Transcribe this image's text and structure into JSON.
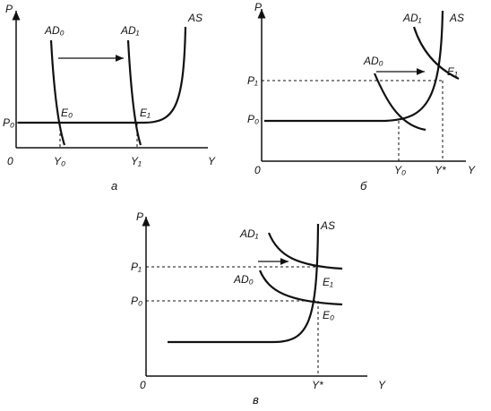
{
  "panels": [
    {
      "caption": "а",
      "labels": {
        "p_axis": "P",
        "y_axis": "Y",
        "origin": "0",
        "ad0": "AD₀",
        "ad1": "AD₁",
        "as": "AS",
        "p0": "P₀",
        "e0": "E₀",
        "e1": "E₁",
        "y0": "Y₀",
        "y1": "Y₁"
      }
    },
    {
      "caption": "б",
      "labels": {
        "p_axis": "P",
        "y_axis": "Y",
        "origin": "0",
        "ad0": "AD₀",
        "ad1": "AD₁",
        "as": "AS",
        "p0": "P₀",
        "p1": "P₁",
        "e1": "E₁",
        "y0": "Y₀",
        "ystar": "Y*"
      }
    },
    {
      "caption": "в",
      "labels": {
        "p_axis": "P",
        "y_axis": "Y",
        "origin": "0",
        "ad0": "AD₀",
        "ad1": "AD₁",
        "as": "AS",
        "p0": "P₀",
        "p1": "P₁",
        "e0": "E₀",
        "e1": "E₁",
        "ystar": "Y*"
      }
    }
  ]
}
